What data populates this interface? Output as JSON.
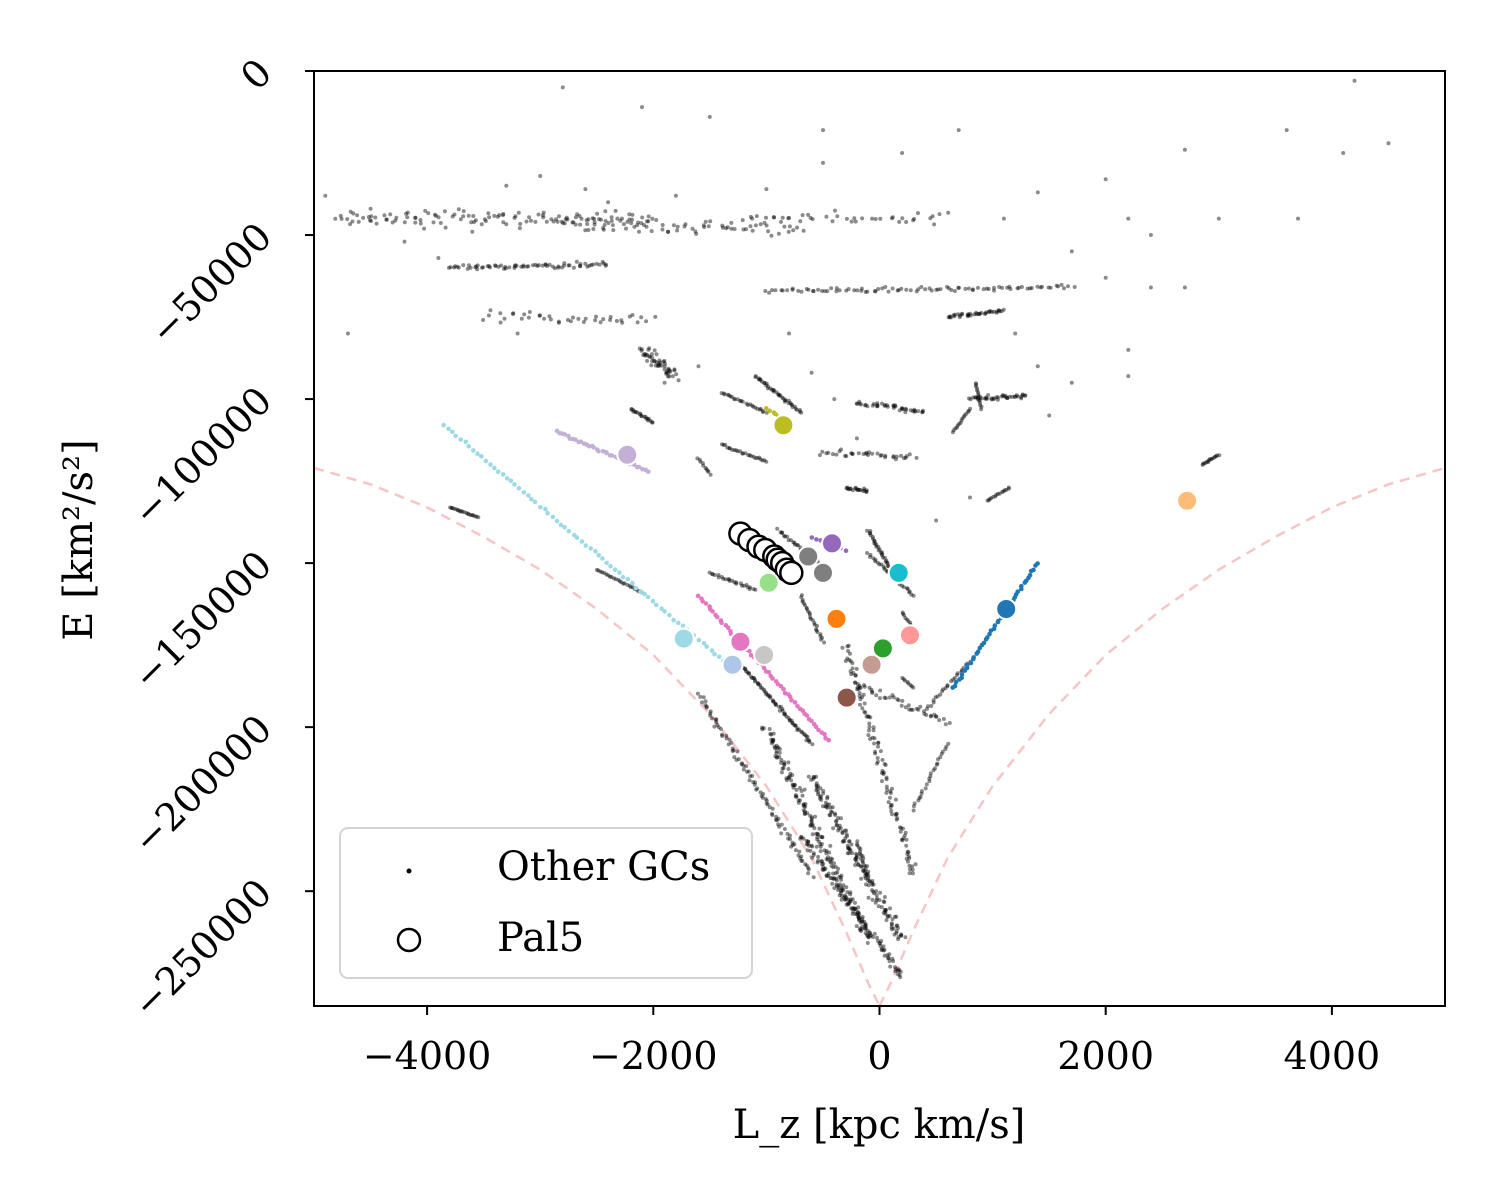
{
  "chart_data": {
    "type": "scatter",
    "title": "",
    "xlabel": "L_z [kpc km/s]",
    "ylabel": "E [km²/s²]",
    "xlim": [
      -5000,
      5000
    ],
    "ylim": [
      -285000,
      0
    ],
    "xticks": [
      -4000,
      -2000,
      0,
      2000,
      4000
    ],
    "xtick_labels": [
      "−4000",
      "−2000",
      "0",
      "2000",
      "4000"
    ],
    "yticks": [
      0,
      -50000,
      -100000,
      -150000,
      -200000,
      -250000
    ],
    "ytick_labels": [
      "0",
      "−50000",
      "−100000",
      "−150000",
      "−200000",
      "−250000"
    ],
    "legend": {
      "location": "lower-left",
      "entries": [
        {
          "label": "Other GCs",
          "marker": "small-dot",
          "color": "#000000"
        },
        {
          "label": "Pal5",
          "marker": "open-circle",
          "color": "#000000"
        }
      ]
    },
    "envelope_color": "#f7c5c5",
    "envelope_curve": [
      [
        -5000,
        -121000
      ],
      [
        -4500,
        -126000
      ],
      [
        -4000,
        -133000
      ],
      [
        -3500,
        -142000
      ],
      [
        -3000,
        -152000
      ],
      [
        -2500,
        -164000
      ],
      [
        -2000,
        -178000
      ],
      [
        -1500,
        -196000
      ],
      [
        -1000,
        -218000
      ],
      [
        -600,
        -240000
      ],
      [
        -300,
        -262000
      ],
      [
        -100,
        -278000
      ],
      [
        0,
        -285000
      ],
      [
        100,
        -278000
      ],
      [
        300,
        -262000
      ],
      [
        600,
        -240000
      ],
      [
        1000,
        -218000
      ],
      [
        1500,
        -196000
      ],
      [
        2000,
        -178000
      ],
      [
        2500,
        -164000
      ],
      [
        3000,
        -152000
      ],
      [
        3500,
        -142000
      ],
      [
        4000,
        -133000
      ],
      [
        4500,
        -126000
      ],
      [
        5000,
        -121000
      ]
    ],
    "other_gcs_color": "#000000",
    "other_gcs_segments": [
      {
        "from": [
          -4800,
          -45000
        ],
        "to": [
          -2000,
          -45000
        ],
        "n": 120,
        "spread": [
          60,
          3500
        ]
      },
      {
        "from": [
          -2800,
          -47000
        ],
        "to": [
          -700,
          -48000
        ],
        "n": 70,
        "spread": [
          60,
          3000
        ]
      },
      {
        "from": [
          -3800,
          -60000
        ],
        "to": [
          -2400,
          -59000
        ],
        "n": 70,
        "spread": [
          40,
          1200
        ]
      },
      {
        "from": [
          -1200,
          -45000
        ],
        "to": [
          600,
          -45000
        ],
        "n": 40,
        "spread": [
          80,
          3000
        ]
      },
      {
        "from": [
          -1000,
          -67000
        ],
        "to": [
          1700,
          -66000
        ],
        "n": 90,
        "spread": [
          40,
          1000
        ]
      },
      {
        "from": [
          -3500,
          -75000
        ],
        "to": [
          -2000,
          -76000
        ],
        "n": 40,
        "spread": [
          60,
          3000
        ]
      },
      {
        "from": [
          600,
          -75000
        ],
        "to": [
          1100,
          -73000
        ],
        "n": 40,
        "spread": [
          30,
          800
        ]
      },
      {
        "from": [
          -2100,
          -85000
        ],
        "to": [
          -1800,
          -93000
        ],
        "n": 50,
        "spread": [
          60,
          3000
        ]
      },
      {
        "from": [
          -2200,
          -103000
        ],
        "to": [
          -2000,
          -107000
        ],
        "n": 20,
        "spread": [
          20,
          500
        ]
      },
      {
        "from": [
          -1100,
          -93000
        ],
        "to": [
          -700,
          -104000
        ],
        "n": 40,
        "spread": [
          20,
          500
        ]
      },
      {
        "from": [
          -1400,
          -98000
        ],
        "to": [
          -1000,
          -104000
        ],
        "n": 25,
        "spread": [
          20,
          500
        ]
      },
      {
        "from": [
          -1400,
          -114000
        ],
        "to": [
          -1000,
          -119000
        ],
        "n": 25,
        "spread": [
          20,
          500
        ]
      },
      {
        "from": [
          -1600,
          -118000
        ],
        "to": [
          -1500,
          -123000
        ],
        "n": 10,
        "spread": [
          20,
          500
        ]
      },
      {
        "from": [
          -200,
          -101000
        ],
        "to": [
          400,
          -104000
        ],
        "n": 40,
        "spread": [
          60,
          1500
        ]
      },
      {
        "from": [
          -500,
          -116000
        ],
        "to": [
          300,
          -118000
        ],
        "n": 35,
        "spread": [
          60,
          1500
        ]
      },
      {
        "from": [
          -300,
          -127000
        ],
        "to": [
          -100,
          -128000
        ],
        "n": 20,
        "spread": [
          30,
          800
        ]
      },
      {
        "from": [
          800,
          -100000
        ],
        "to": [
          1300,
          -99000
        ],
        "n": 40,
        "spread": [
          40,
          1000
        ]
      },
      {
        "from": [
          850,
          -95000
        ],
        "to": [
          900,
          -103000
        ],
        "n": 15,
        "spread": [
          10,
          300
        ]
      },
      {
        "from": [
          800,
          -103000
        ],
        "to": [
          650,
          -110000
        ],
        "n": 15,
        "spread": [
          10,
          300
        ]
      },
      {
        "from": [
          950,
          -131000
        ],
        "to": [
          1150,
          -127000
        ],
        "n": 15,
        "spread": [
          10,
          300
        ]
      },
      {
        "from": [
          2850,
          -120000
        ],
        "to": [
          3000,
          -117000
        ],
        "n": 15,
        "spread": [
          10,
          300
        ]
      },
      {
        "from": [
          -3800,
          -133000
        ],
        "to": [
          -3550,
          -136000
        ],
        "n": 20,
        "spread": [
          10,
          300
        ]
      },
      {
        "from": [
          -2500,
          -152000
        ],
        "to": [
          -2100,
          -159000
        ],
        "n": 25,
        "spread": [
          10,
          300
        ]
      },
      {
        "from": [
          -900,
          -140000
        ],
        "to": [
          -500,
          -151000
        ],
        "n": 30,
        "spread": [
          20,
          600
        ]
      },
      {
        "from": [
          -1500,
          -153000
        ],
        "to": [
          -1100,
          -158000
        ],
        "n": 25,
        "spread": [
          20,
          500
        ]
      },
      {
        "from": [
          -100,
          -140000
        ],
        "to": [
          100,
          -152000
        ],
        "n": 30,
        "spread": [
          20,
          600
        ]
      },
      {
        "from": [
          -100,
          -147000
        ],
        "to": [
          300,
          -160000
        ],
        "n": 30,
        "spread": [
          20,
          600
        ]
      },
      {
        "from": [
          200,
          -165000
        ],
        "to": [
          300,
          -170000
        ],
        "n": 10,
        "spread": [
          10,
          300
        ]
      },
      {
        "from": [
          -1250,
          -180000
        ],
        "to": [
          -600,
          -205000
        ],
        "n": 70,
        "spread": [
          20,
          600
        ]
      },
      {
        "from": [
          -700,
          -160000
        ],
        "to": [
          -500,
          -174000
        ],
        "n": 25,
        "spread": [
          20,
          600
        ]
      },
      {
        "from": [
          -1000,
          -200000
        ],
        "to": [
          -100,
          -265000
        ],
        "n": 170,
        "spread": [
          80,
          2000
        ]
      },
      {
        "from": [
          -600,
          -215000
        ],
        "to": [
          200,
          -265000
        ],
        "n": 150,
        "spread": [
          80,
          2000
        ]
      },
      {
        "from": [
          -300,
          -175000
        ],
        "to": [
          300,
          -245000
        ],
        "n": 110,
        "spread": [
          60,
          2000
        ]
      },
      {
        "from": [
          -1600,
          -190000
        ],
        "to": [
          -600,
          -245000
        ],
        "n": 90,
        "spread": [
          40,
          1000
        ]
      },
      {
        "from": [
          -700,
          -233000
        ],
        "to": [
          200,
          -276000
        ],
        "n": 110,
        "spread": [
          50,
          1500
        ]
      },
      {
        "from": [
          400,
          -195000
        ],
        "to": [
          800,
          -180000
        ],
        "n": 25,
        "spread": [
          20,
          600
        ]
      },
      {
        "from": [
          300,
          -225000
        ],
        "to": [
          600,
          -205000
        ],
        "n": 25,
        "spread": [
          20,
          600
        ]
      },
      {
        "from": [
          -200,
          -235000
        ],
        "to": [
          -100,
          -246000
        ],
        "n": 20,
        "spread": [
          20,
          400
        ]
      },
      {
        "from": [
          -200,
          -187000
        ],
        "to": [
          600,
          -198000
        ],
        "n": 40,
        "spread": [
          40,
          2000
        ]
      },
      {
        "from": [
          200,
          -185000
        ],
        "to": [
          300,
          -188000
        ],
        "n": 8,
        "spread": [
          10,
          200
        ]
      }
    ],
    "other_gcs_scatter": [
      [
        -2800,
        -5000
      ],
      [
        -2100,
        -11000
      ],
      [
        -1500,
        -14000
      ],
      [
        -500,
        -18000
      ],
      [
        700,
        -18000
      ],
      [
        -500,
        -28000
      ],
      [
        200,
        -25000
      ],
      [
        2000,
        -33000
      ],
      [
        2700,
        -24000
      ],
      [
        3600,
        -18000
      ],
      [
        4200,
        -3000
      ],
      [
        4500,
        -22000
      ],
      [
        4100,
        -25000
      ],
      [
        3700,
        -45000
      ],
      [
        3000,
        -45000
      ],
      [
        2200,
        -45000
      ],
      [
        -4900,
        -38000
      ],
      [
        -4700,
        -80000
      ],
      [
        -4500,
        -42000
      ],
      [
        -3300,
        -35000
      ],
      [
        -3000,
        -32000
      ],
      [
        -2600,
        -36000
      ],
      [
        -1800,
        -38000
      ],
      [
        -1000,
        -36000
      ],
      [
        1400,
        -37000
      ],
      [
        1100,
        -45000
      ],
      [
        2400,
        -50000
      ],
      [
        1700,
        -55000
      ],
      [
        2400,
        -66000
      ],
      [
        2700,
        -66000
      ],
      [
        2200,
        -85000
      ],
      [
        2200,
        -93000
      ],
      [
        1400,
        -90000
      ],
      [
        1700,
        -95000
      ],
      [
        1500,
        -105000
      ],
      [
        -200,
        -112000
      ],
      [
        -400,
        -100000
      ],
      [
        -600,
        -92000
      ],
      [
        -800,
        -80000
      ],
      [
        800,
        -130000
      ],
      [
        500,
        -137000
      ],
      [
        -3200,
        -80000
      ],
      [
        -1600,
        -90000
      ],
      [
        -1900,
        -95000
      ],
      [
        1200,
        -80000
      ],
      [
        -4200,
        -52000
      ],
      [
        -2400,
        -40000
      ],
      [
        -3900,
        -57000
      ],
      [
        -3600,
        -49000
      ],
      [
        2000,
        -63000
      ]
    ],
    "tracked_streams": [
      {
        "name": "blue",
        "color": "#1f77b4",
        "from": [
          650,
          -188000
        ],
        "to": [
          1400,
          -150000
        ],
        "n": 45,
        "marker": [
          1120,
          -164000
        ]
      },
      {
        "name": "orange",
        "color": "#ff7f0e",
        "marker": [
          -380,
          -167000
        ]
      },
      {
        "name": "green",
        "color": "#2ca02c",
        "marker": [
          30,
          -176000
        ]
      },
      {
        "name": "purple",
        "color": "#9467bd",
        "from": [
          -600,
          -142000
        ],
        "to": [
          -300,
          -146000
        ],
        "n": 8,
        "marker": [
          -420,
          -144000
        ]
      },
      {
        "name": "brown",
        "color": "#8c564b",
        "marker": [
          -290,
          -191000
        ]
      },
      {
        "name": "pink",
        "color": "#e377c2",
        "from": [
          -1600,
          -160000
        ],
        "to": [
          -450,
          -204000
        ],
        "n": 55,
        "marker": [
          -1230,
          -174000
        ]
      },
      {
        "name": "gray-a",
        "color": "#7f7f7f",
        "marker": [
          -630,
          -148000
        ]
      },
      {
        "name": "gray-b",
        "color": "#7f7f7f",
        "marker": [
          -500,
          -153000
        ]
      },
      {
        "name": "olive",
        "color": "#bcbd22",
        "from": [
          -1000,
          -103000
        ],
        "to": [
          -860,
          -106000
        ],
        "n": 6,
        "marker": [
          -850,
          -108000
        ]
      },
      {
        "name": "cyan",
        "color": "#17becf",
        "marker": [
          170,
          -153000
        ]
      },
      {
        "name": "light-blue",
        "color": "#aec7e8",
        "marker": [
          -1300,
          -181000
        ]
      },
      {
        "name": "light-orange",
        "color": "#ffbb78",
        "marker": [
          2720,
          -131000
        ]
      },
      {
        "name": "light-green",
        "color": "#98df8a",
        "marker": [
          -980,
          -156000
        ]
      },
      {
        "name": "light-red",
        "color": "#ff9896",
        "marker": [
          270,
          -172000
        ]
      },
      {
        "name": "lavender",
        "color": "#c5b0d5",
        "from": [
          -2850,
          -110000
        ],
        "to": [
          -2050,
          -122000
        ],
        "n": 35,
        "marker": [
          -2230,
          -117000
        ]
      },
      {
        "name": "tan",
        "color": "#c49c94",
        "marker": [
          -70,
          -181000
        ]
      },
      {
        "name": "light-gray",
        "color": "#c7c7c7",
        "marker": [
          -1020,
          -178000
        ]
      },
      {
        "name": "light-cyan",
        "color": "#9edae5",
        "from": [
          -3850,
          -108000
        ],
        "to": [
          -1300,
          -182000
        ],
        "n": 70,
        "marker": [
          -1730,
          -173000
        ]
      }
    ],
    "pal5_points": [
      [
        -1230,
        -141000
      ],
      [
        -1150,
        -143000
      ],
      [
        -1070,
        -145000
      ],
      [
        -1010,
        -146000
      ],
      [
        -930,
        -148000
      ],
      [
        -900,
        -149000
      ],
      [
        -860,
        -150000
      ],
      [
        -820,
        -152000
      ],
      [
        -780,
        -153000
      ]
    ]
  }
}
